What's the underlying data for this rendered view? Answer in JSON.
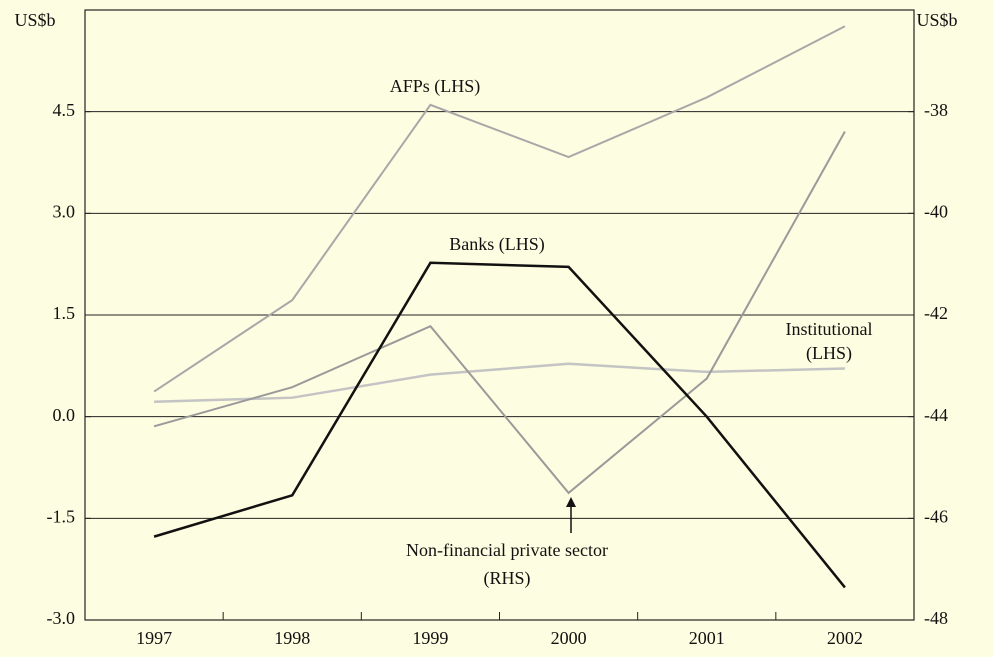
{
  "chart_data": {
    "type": "line",
    "ylabel": "US$b",
    "y2label": "US$b",
    "categories": [
      "1997",
      "1998",
      "1999",
      "2000",
      "2001",
      "2002"
    ],
    "ylim": [
      -3,
      6
    ],
    "yticks": [
      {
        "value": -3,
        "label": "-3.0"
      },
      {
        "value": -1.5,
        "label": "-1.5"
      },
      {
        "value": 0,
        "label": "0.0"
      },
      {
        "value": 1.5,
        "label": "1.5"
      },
      {
        "value": 3,
        "label": "3.0"
      },
      {
        "value": 4.5,
        "label": "4.5"
      }
    ],
    "y2lim": [
      -48,
      -36
    ],
    "y2ticks": [
      -48,
      -46,
      -44,
      -42,
      -40,
      -38
    ],
    "grid": true,
    "series": [
      {
        "name": "AFPs (LHS)",
        "color": "#a8a8a8",
        "width": 2,
        "values": [
          0.37,
          1.72,
          4.6,
          3.83,
          4.71,
          5.76
        ]
      },
      {
        "name": "Institutional (LHS)",
        "color": "#c4c4c4",
        "width": 2.5,
        "values": [
          0.22,
          0.28,
          0.62,
          0.78,
          0.66,
          0.71
        ]
      },
      {
        "name": "Non-financial private sector (RHS)",
        "color": "#9a9a9a",
        "width": 2,
        "axis": "y2",
        "values": [
          -44.19,
          -43.42,
          -42.22,
          -45.5,
          -43.25,
          -38.39
        ]
      },
      {
        "name": "Banks (LHS)",
        "color": "#111111",
        "width": 2.5,
        "values": [
          -1.77,
          -1.16,
          2.27,
          2.21,
          0.0,
          -2.52
        ]
      }
    ],
    "annotations": [
      {
        "lines": [
          "AFPs (LHS)"
        ]
      },
      {
        "lines": [
          "Banks (LHS)"
        ]
      },
      {
        "lines": [
          "Institutional",
          "(LHS)"
        ]
      },
      {
        "lines": [
          "Non-financial private sector",
          "(RHS)"
        ]
      }
    ]
  }
}
